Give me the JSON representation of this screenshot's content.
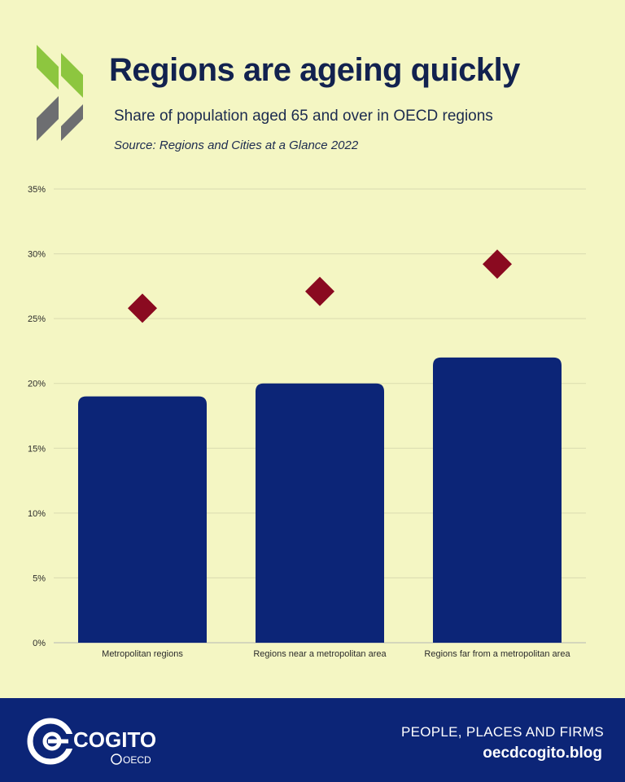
{
  "header": {
    "title": "Regions are ageing quickly",
    "subtitle": "Share of population aged 65 and over in OECD regions",
    "source": "Source: Regions and Cities at a Glance 2022"
  },
  "chart_data": {
    "type": "bar",
    "categories": [
      "Metropolitan regions",
      "Regions near a metropolitan area",
      "Regions far from a metropolitan area"
    ],
    "series": [
      {
        "type": "bar",
        "values": [
          19,
          20,
          22
        ],
        "color": "#0c2577"
      },
      {
        "type": "scatter",
        "marker": "diamond",
        "values": [
          25.8,
          27.1,
          29.2
        ],
        "color": "#8a0a20"
      }
    ],
    "yticks": [
      "0%",
      "5%",
      "10%",
      "15%",
      "20%",
      "25%",
      "30%",
      "35%"
    ],
    "ylim": [
      0,
      35
    ],
    "ylabel": "",
    "xlabel": "",
    "grid": true
  },
  "footer": {
    "brand": "COGITO",
    "brand_sub": "OECD",
    "tagline": "PEOPLE, PLACES AND FIRMS",
    "url": "oecdcogito.blog"
  },
  "colors": {
    "background": "#f4f6c3",
    "bar": "#0c2577",
    "marker": "#8a0a20",
    "footer": "#0c2577",
    "logo_green": "#8dc63f",
    "logo_grey": "#6d6e71"
  }
}
